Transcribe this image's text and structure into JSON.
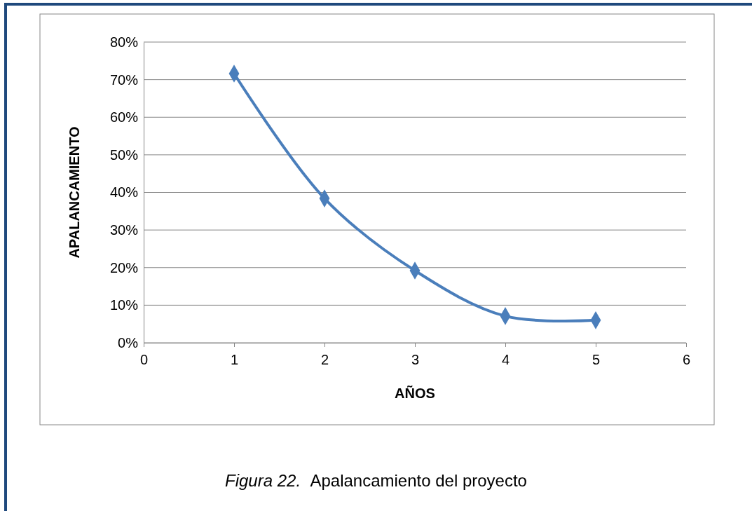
{
  "chart_data": {
    "type": "line",
    "xlabel": "AÑOS",
    "ylabel": "APALANCAMIENTO",
    "x": [
      1,
      2,
      3,
      4,
      5
    ],
    "series": [
      {
        "color": "#4a7ebb",
        "values": [
          71.6,
          38.4,
          19.2,
          7.1,
          6.0
        ]
      }
    ],
    "xlim": [
      0,
      6
    ],
    "xticks": [
      0,
      1,
      2,
      3,
      4,
      5,
      6
    ],
    "ylim": [
      0,
      80
    ],
    "yticks": [
      {
        "value": 0,
        "label": "0%"
      },
      {
        "value": 10,
        "label": "10%"
      },
      {
        "value": 20,
        "label": "20%"
      },
      {
        "value": 30,
        "label": "30%"
      },
      {
        "value": 40,
        "label": "40%"
      },
      {
        "value": 50,
        "label": "50%"
      },
      {
        "value": 60,
        "label": "60%"
      },
      {
        "value": 70,
        "label": "70%"
      },
      {
        "value": 80,
        "label": "80%"
      }
    ],
    "grid": "y",
    "marker": "diamond",
    "line_style": "solid",
    "annotations": [
      "Figura 22.",
      "Apalancamiento del proyecto"
    ]
  }
}
